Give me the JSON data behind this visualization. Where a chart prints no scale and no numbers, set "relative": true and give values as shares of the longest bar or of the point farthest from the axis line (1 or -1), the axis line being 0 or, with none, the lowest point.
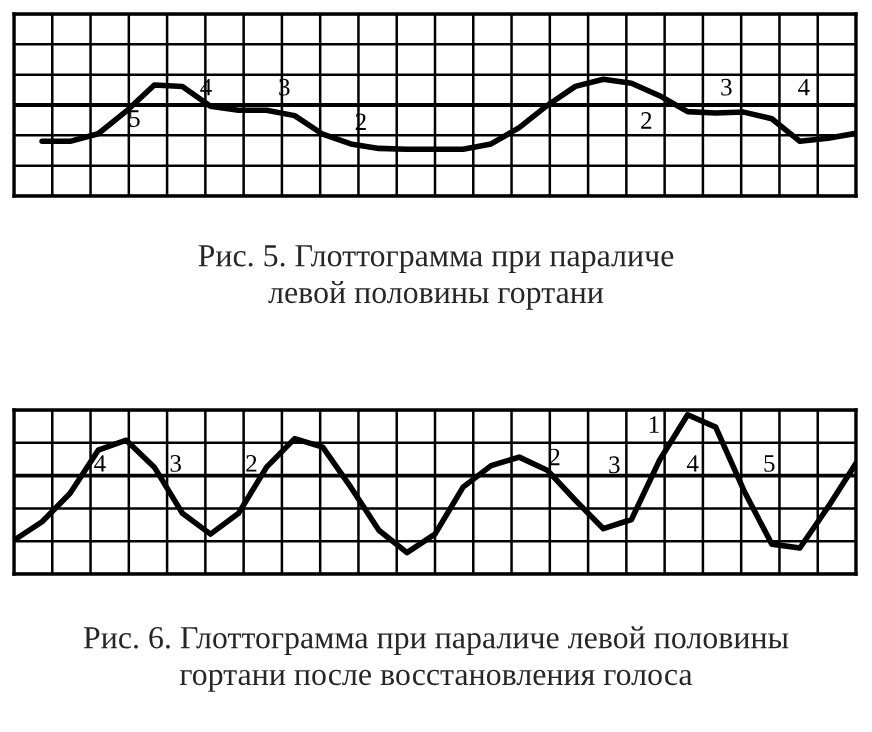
{
  "chart_data": [
    {
      "type": "line",
      "relative": true,
      "grid": true,
      "title": "Рис. 5. Глоттограмма при параличе\nлевой половины гортани",
      "categories": [
        null,
        null,
        null,
        null,
        null,
        null,
        null,
        null,
        null,
        null,
        null,
        null,
        null,
        null,
        null,
        null,
        null,
        null,
        null,
        null,
        null,
        null,
        null,
        null,
        null,
        null,
        null,
        null,
        null,
        null
      ],
      "series": [
        {
          "color": "#000000",
          "values": [
            -0.82,
            -0.82,
            -0.65,
            -0.14,
            0.45,
            0.42,
            -0.03,
            -0.12,
            -0.12,
            -0.24,
            -0.66,
            -0.88,
            -0.98,
            -1,
            -1,
            -1,
            -0.88,
            -0.51,
            -0.01,
            0.42,
            0.58,
            0.49,
            0.21,
            -0.15,
            -0.18,
            -0.16,
            -0.31,
            -0.82,
            -0.75,
            -0.64
          ]
        }
      ],
      "annotations": [
        "5",
        "4",
        "3",
        "2",
        "2",
        "3",
        "4"
      ]
    },
    {
      "type": "line",
      "relative": true,
      "grid": true,
      "title": "Рис. 6. Глоттограмма при параличе левой половины\nгортани после восстановления голоса",
      "categories": [
        null,
        null,
        null,
        null,
        null,
        null,
        null,
        null,
        null,
        null,
        null,
        null,
        null,
        null,
        null,
        null,
        null,
        null,
        null,
        null,
        null,
        null,
        null,
        null,
        null,
        null,
        null,
        null,
        null,
        null,
        null
      ],
      "series": [
        {
          "color": "#000000",
          "values": [
            -0.84,
            -0.6,
            -0.23,
            0.33,
            0.46,
            0.11,
            -0.49,
            -0.76,
            -0.49,
            0.11,
            0.48,
            0.37,
            -0.15,
            -0.71,
            -1,
            -0.76,
            -0.15,
            0.13,
            0.24,
            0.07,
            -0.32,
            -0.69,
            -0.57,
            0.2,
            0.79,
            0.63,
            -0.19,
            -0.89,
            -0.94,
            -0.41,
            0.16
          ]
        }
      ],
      "annotations": [
        "4",
        "3",
        "2",
        "2",
        "3",
        "1",
        "4",
        "5"
      ]
    }
  ]
}
